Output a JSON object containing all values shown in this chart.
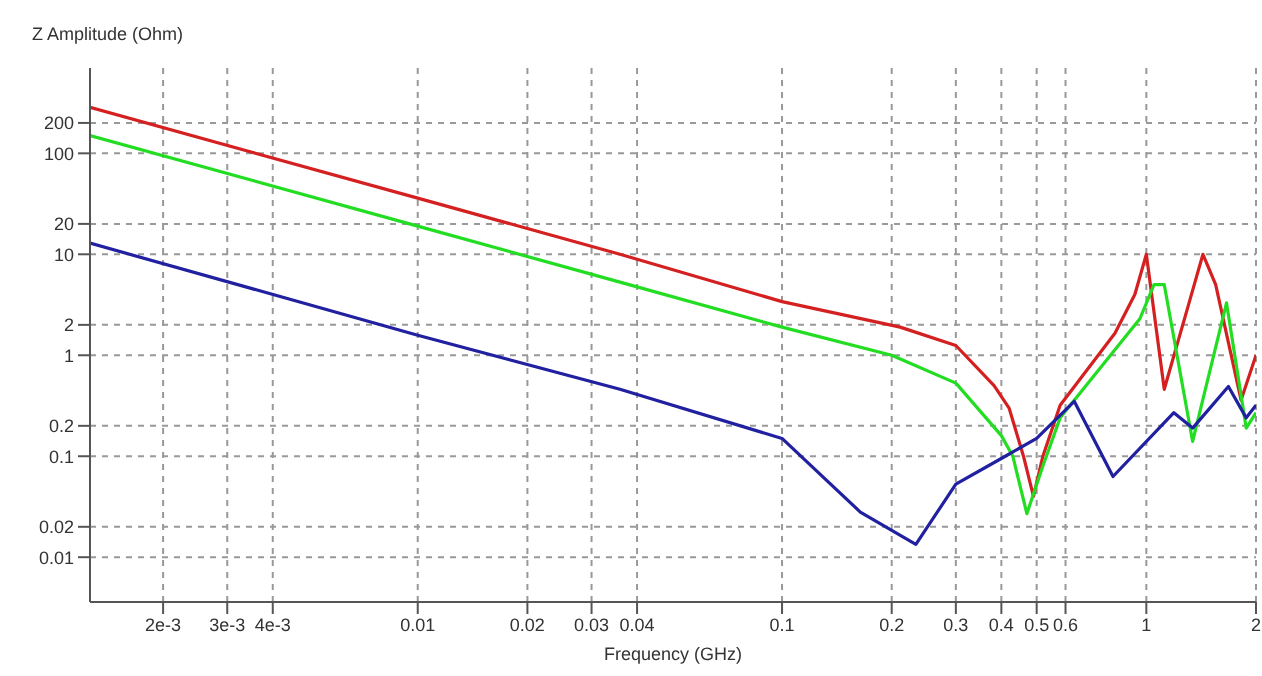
{
  "chart_data": {
    "type": "line",
    "xlabel": "Frequency (GHz)",
    "ylabel": "Z Amplitude (Ohm)",
    "log": "xy",
    "grid": true,
    "marker": "none",
    "xlim": [
      0.00126,
      2
    ],
    "ylim": [
      0.0036,
      700
    ],
    "xticks": [
      {
        "value": 0.002,
        "label": "2e-3"
      },
      {
        "value": 0.003,
        "label": "3e-3"
      },
      {
        "value": 0.004,
        "label": "4e-3"
      },
      0.01,
      0.02,
      0.03,
      0.04,
      0.1,
      0.2,
      0.3,
      0.4,
      0.5,
      0.6,
      1,
      2
    ],
    "yticks": [
      0.01,
      0.02,
      0.1,
      0.2,
      1,
      2,
      10,
      20,
      100,
      200
    ],
    "series": [
      {
        "color": "#d42020",
        "x": [
          0.00126,
          0.01,
          0.0359,
          0.1,
          0.211,
          0.3,
          0.382,
          0.42,
          0.46,
          0.49,
          0.52,
          0.58,
          0.82,
          0.93,
          1,
          1.12,
          1.3,
          1.43,
          1.55,
          1.82,
          2
        ],
        "values": [
          285,
          36,
          10,
          3.4,
          1.9,
          1.25,
          0.5,
          0.3,
          0.1,
          0.04,
          0.1,
          0.32,
          1.65,
          4,
          10,
          0.46,
          3,
          10,
          5,
          0.36,
          1
        ]
      },
      {
        "color": "#22dd22",
        "x": [
          0.00126,
          0.01,
          0.0359,
          0.1,
          0.2,
          0.3,
          0.4,
          0.43,
          0.47,
          0.52,
          0.58,
          0.96,
          1.05,
          1.12,
          1.34,
          1.66,
          1.88,
          2
        ],
        "values": [
          150,
          19,
          5.3,
          1.9,
          1,
          0.53,
          0.16,
          0.1,
          0.027,
          0.08,
          0.24,
          2.3,
          5,
          5,
          0.14,
          3.3,
          0.19,
          0.27
        ]
      },
      {
        "color": "#2020a0",
        "x": [
          0.00126,
          0.01,
          0.0359,
          0.1,
          0.164,
          0.233,
          0.3,
          0.41,
          0.5,
          0.634,
          0.81,
          1.19,
          1.34,
          1.68,
          1.88,
          2
        ],
        "values": [
          12.9,
          1.58,
          0.46,
          0.15,
          0.028,
          0.0134,
          0.053,
          0.1,
          0.15,
          0.35,
          0.063,
          0.27,
          0.19,
          0.49,
          0.24,
          0.32
        ]
      }
    ]
  }
}
